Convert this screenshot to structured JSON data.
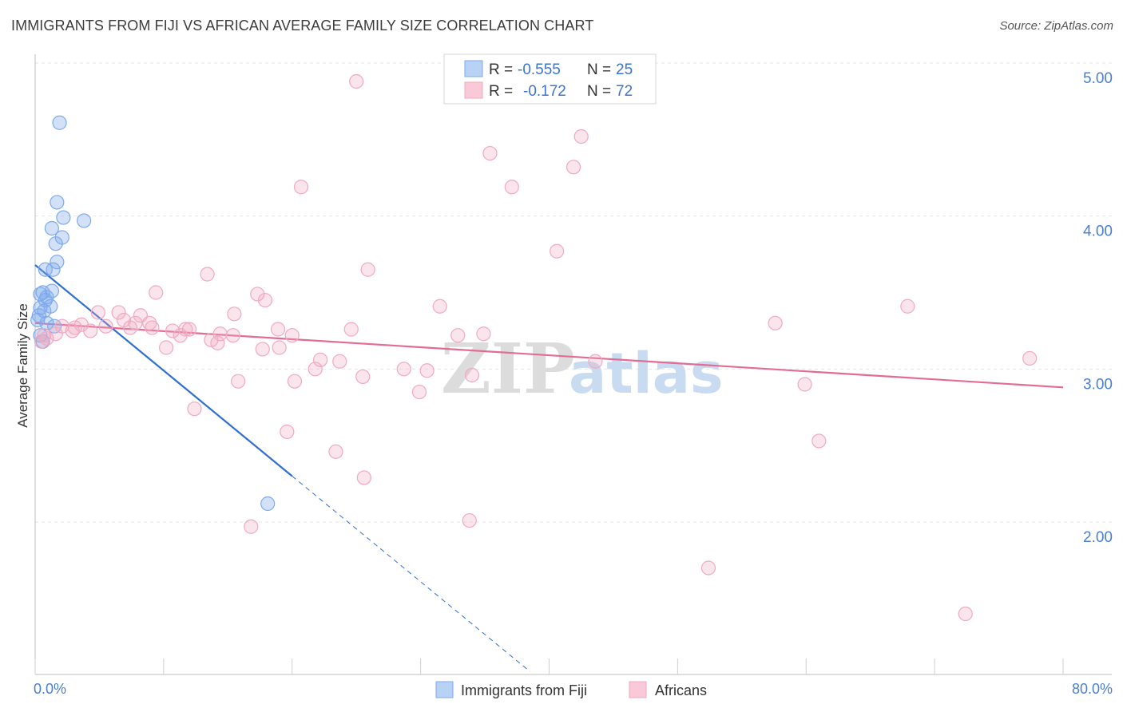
{
  "title": "IMMIGRANTS FROM FIJI VS AFRICAN AVERAGE FAMILY SIZE CORRELATION CHART",
  "source": "Source: ZipAtlas.com",
  "watermark": {
    "zip": "ZIP",
    "atlas": "atlas"
  },
  "chart_data": {
    "type": "scatter",
    "title": "IMMIGRANTS FROM FIJI VS AFRICAN AVERAGE FAMILY SIZE CORRELATION CHART",
    "xlabel": "",
    "ylabel": "Average Family Size",
    "xlim": [
      0,
      80
    ],
    "ylim": [
      1.1,
      5.25
    ],
    "x_tick_labels": [
      "0.0%",
      "80.0%"
    ],
    "y_ticks": [
      2.0,
      3.0,
      4.0,
      5.0
    ],
    "y_tick_labels": [
      "2.00",
      "3.00",
      "4.00",
      "5.00"
    ],
    "legend": {
      "rows": [
        {
          "r_label": "R =",
          "r_value": "-0.555",
          "n_label": "N =",
          "n_value": "25"
        },
        {
          "r_label": "R =",
          "r_value": "-0.172",
          "n_label": "N =",
          "n_value": "72"
        }
      ]
    },
    "series": [
      {
        "name": "Immigrants from Fiji",
        "color": "#7eaaea",
        "line_color": "#2f6fd0",
        "trend": {
          "x0": 0,
          "y0": 3.68,
          "x1": 20,
          "y1": 2.3,
          "dash_to_x": 38.5
        },
        "points": [
          [
            1.9,
            4.61
          ],
          [
            1.7,
            4.09
          ],
          [
            2.2,
            3.99
          ],
          [
            3.8,
            3.97
          ],
          [
            1.3,
            3.92
          ],
          [
            2.1,
            3.86
          ],
          [
            1.6,
            3.82
          ],
          [
            1.7,
            3.7
          ],
          [
            1.4,
            3.65
          ],
          [
            0.8,
            3.65
          ],
          [
            0.6,
            3.5
          ],
          [
            1.3,
            3.51
          ],
          [
            0.4,
            3.49
          ],
          [
            0.9,
            3.47
          ],
          [
            0.8,
            3.45
          ],
          [
            0.4,
            3.4
          ],
          [
            1.2,
            3.41
          ],
          [
            0.7,
            3.38
          ],
          [
            0.3,
            3.35
          ],
          [
            0.2,
            3.32
          ],
          [
            1.5,
            3.28
          ],
          [
            0.4,
            3.22
          ],
          [
            0.6,
            3.18
          ],
          [
            18.1,
            2.12
          ],
          [
            0.9,
            3.3
          ]
        ]
      },
      {
        "name": "Africans",
        "color": "#f0a9c0",
        "line_color": "#e16d94",
        "trend": {
          "x0": 0,
          "y0": 3.3,
          "x1": 80,
          "y1": 2.88
        },
        "points": [
          [
            25,
            4.88
          ],
          [
            35.4,
            4.41
          ],
          [
            42.5,
            4.52
          ],
          [
            41.9,
            4.32
          ],
          [
            37.1,
            4.19
          ],
          [
            20.7,
            4.19
          ],
          [
            40.6,
            3.77
          ],
          [
            13.4,
            3.62
          ],
          [
            25.9,
            3.65
          ],
          [
            9.4,
            3.5
          ],
          [
            17.3,
            3.49
          ],
          [
            17.9,
            3.45
          ],
          [
            31.5,
            3.41
          ],
          [
            67.9,
            3.41
          ],
          [
            4.9,
            3.37
          ],
          [
            6.5,
            3.37
          ],
          [
            15.5,
            3.36
          ],
          [
            6.9,
            3.32
          ],
          [
            8.2,
            3.35
          ],
          [
            7.8,
            3.3
          ],
          [
            2.1,
            3.28
          ],
          [
            3.6,
            3.29
          ],
          [
            5.5,
            3.28
          ],
          [
            8.9,
            3.3
          ],
          [
            7.4,
            3.27
          ],
          [
            9.1,
            3.27
          ],
          [
            11.7,
            3.26
          ],
          [
            10.7,
            3.25
          ],
          [
            12.0,
            3.26
          ],
          [
            18.9,
            3.26
          ],
          [
            24.6,
            3.26
          ],
          [
            57.6,
            3.3
          ],
          [
            2.9,
            3.25
          ],
          [
            4.3,
            3.25
          ],
          [
            1.6,
            3.23
          ],
          [
            14.4,
            3.23
          ],
          [
            11.3,
            3.22
          ],
          [
            15.4,
            3.22
          ],
          [
            20.0,
            3.22
          ],
          [
            32.9,
            3.22
          ],
          [
            34.9,
            3.23
          ],
          [
            13.7,
            3.19
          ],
          [
            14.2,
            3.17
          ],
          [
            10.2,
            3.14
          ],
          [
            17.7,
            3.13
          ],
          [
            19.0,
            3.14
          ],
          [
            0.7,
            3.22
          ],
          [
            0.5,
            3.18
          ],
          [
            0.9,
            3.2
          ],
          [
            22.2,
            3.06
          ],
          [
            23.7,
            3.05
          ],
          [
            21.8,
            3.0
          ],
          [
            28.7,
            3.0
          ],
          [
            30.5,
            2.99
          ],
          [
            25.5,
            2.95
          ],
          [
            34.0,
            2.96
          ],
          [
            15.8,
            2.92
          ],
          [
            20.2,
            2.92
          ],
          [
            43.6,
            3.05
          ],
          [
            59.9,
            2.9
          ],
          [
            77.4,
            3.07
          ],
          [
            29.9,
            2.85
          ],
          [
            12.4,
            2.74
          ],
          [
            19.6,
            2.59
          ],
          [
            23.4,
            2.46
          ],
          [
            61.0,
            2.53
          ],
          [
            25.6,
            2.29
          ],
          [
            33.8,
            2.01
          ],
          [
            16.8,
            1.97
          ],
          [
            52.4,
            1.7
          ],
          [
            72.4,
            1.4
          ],
          [
            3.1,
            3.27
          ]
        ]
      }
    ]
  }
}
